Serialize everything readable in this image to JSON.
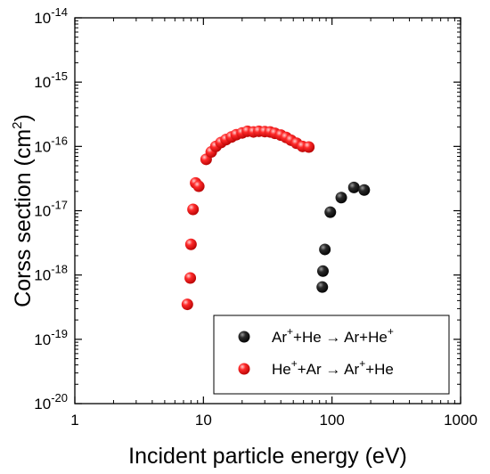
{
  "chart_data": {
    "type": "scatter",
    "xscale": "log",
    "yscale": "log",
    "xlim": [
      1,
      1000
    ],
    "ylim": [
      1e-20,
      1e-14
    ],
    "x_ticks": [
      {
        "value": 1,
        "label": "1"
      },
      {
        "value": 10,
        "label": "10"
      },
      {
        "value": 100,
        "label": "100"
      },
      {
        "value": 1000,
        "label": "1000"
      }
    ],
    "y_ticks": [
      {
        "value": 1e-20,
        "base": "10",
        "exp": "-20"
      },
      {
        "value": 1e-19,
        "base": "10",
        "exp": "-19"
      },
      {
        "value": 1e-18,
        "base": "10",
        "exp": "-18"
      },
      {
        "value": 1e-17,
        "base": "10",
        "exp": "-17"
      },
      {
        "value": 1e-16,
        "base": "10",
        "exp": "-16"
      },
      {
        "value": 1e-15,
        "base": "10",
        "exp": "-15"
      },
      {
        "value": 1e-14,
        "base": "10",
        "exp": "-14"
      }
    ],
    "xlabel": "Incident particle energy (eV)",
    "ylabel": {
      "main": "Corss section (cm",
      "sup": "2",
      "tail": ")"
    },
    "legend_position": "bottom-right",
    "series": [
      {
        "name": "Ar+He -> Ar+He+",
        "legend_parts": [
          "Ar",
          "+",
          "+He → Ar+He",
          "+"
        ],
        "color": "#111111",
        "points": [
          {
            "x": 84,
            "y": 6.5e-19
          },
          {
            "x": 85,
            "y": 1.15e-18
          },
          {
            "x": 88,
            "y": 2.5e-18
          },
          {
            "x": 97,
            "y": 9.5e-18
          },
          {
            "x": 118,
            "y": 1.6e-17
          },
          {
            "x": 148,
            "y": 2.3e-17
          },
          {
            "x": 178,
            "y": 2.1e-17
          }
        ]
      },
      {
        "name": "He+Ar -> Ar+He",
        "legend_parts": [
          "He",
          "+",
          "+Ar → Ar",
          "+",
          "+He"
        ],
        "color": "#ee1111",
        "points": [
          {
            "x": 7.5,
            "y": 3.5e-19
          },
          {
            "x": 7.9,
            "y": 9e-19
          },
          {
            "x": 8.0,
            "y": 3e-18
          },
          {
            "x": 8.3,
            "y": 1.05e-17
          },
          {
            "x": 8.7,
            "y": 2.7e-17
          },
          {
            "x": 9.2,
            "y": 2.4e-17
          },
          {
            "x": 10.5,
            "y": 6.3e-17
          },
          {
            "x": 11.5,
            "y": 8.2e-17
          },
          {
            "x": 12.5,
            "y": 1e-16
          },
          {
            "x": 13.7,
            "y": 1.15e-16
          },
          {
            "x": 15,
            "y": 1.28e-16
          },
          {
            "x": 16.5,
            "y": 1.4e-16
          },
          {
            "x": 18,
            "y": 1.52e-16
          },
          {
            "x": 20,
            "y": 1.62e-16
          },
          {
            "x": 22,
            "y": 1.72e-16
          },
          {
            "x": 24.5,
            "y": 1.68e-16
          },
          {
            "x": 27,
            "y": 1.72e-16
          },
          {
            "x": 30,
            "y": 1.7e-16
          },
          {
            "x": 33,
            "y": 1.68e-16
          },
          {
            "x": 36,
            "y": 1.6e-16
          },
          {
            "x": 40,
            "y": 1.5e-16
          },
          {
            "x": 44,
            "y": 1.38e-16
          },
          {
            "x": 48,
            "y": 1.25e-16
          },
          {
            "x": 53,
            "y": 1.12e-16
          },
          {
            "x": 59,
            "y": 1e-16
          },
          {
            "x": 66,
            "y": 9.8e-17
          }
        ]
      }
    ]
  }
}
